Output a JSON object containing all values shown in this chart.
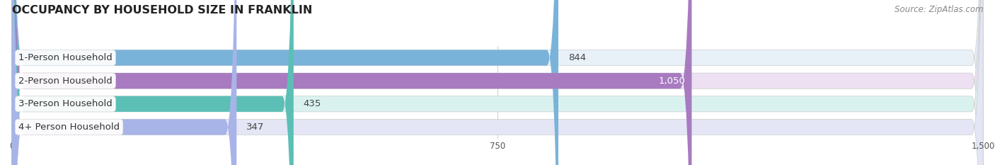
{
  "title": "OCCUPANCY BY HOUSEHOLD SIZE IN FRANKLIN",
  "source": "Source: ZipAtlas.com",
  "categories": [
    "1-Person Household",
    "2-Person Household",
    "3-Person Household",
    "4+ Person Household"
  ],
  "values": [
    844,
    1050,
    435,
    347
  ],
  "bar_colors": [
    "#7ab3d9",
    "#a87bc0",
    "#5bbfb5",
    "#a8b4e8"
  ],
  "bar_bg_colors": [
    "#e8f0f8",
    "#ece0f2",
    "#daf2ef",
    "#e4e6f5"
  ],
  "value_labels": [
    "844",
    "1,050",
    "435",
    "347"
  ],
  "value_inside": [
    false,
    true,
    false,
    false
  ],
  "xlim": [
    0,
    1500
  ],
  "xticks": [
    0,
    750,
    1500
  ],
  "xtick_labels": [
    "0",
    "750",
    "1,500"
  ],
  "background_color": "#ffffff",
  "plot_bg_color": "#ffffff",
  "title_fontsize": 11.5,
  "source_fontsize": 8.5,
  "cat_label_fontsize": 9.5,
  "value_fontsize": 9.5
}
